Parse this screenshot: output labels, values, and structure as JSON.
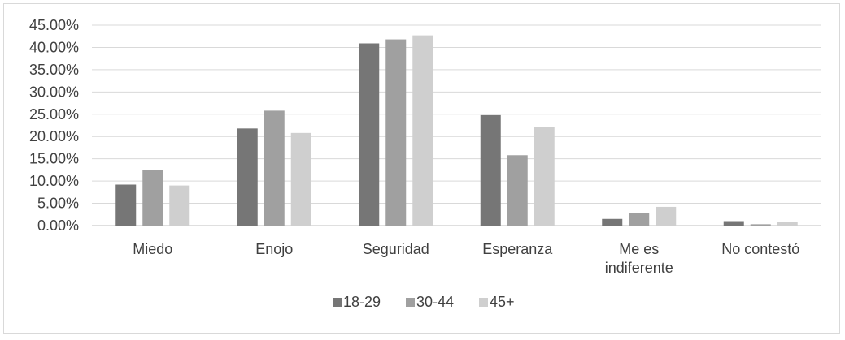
{
  "chart_data": {
    "type": "bar",
    "categories": [
      [
        "Miedo"
      ],
      [
        "Enojo"
      ],
      [
        "Seguridad"
      ],
      [
        "Esperanza"
      ],
      [
        "Me es",
        "indiferente"
      ],
      [
        "No contestó"
      ]
    ],
    "series": [
      {
        "name": "18-29",
        "color": "#767676",
        "values": [
          9.2,
          21.8,
          40.9,
          24.8,
          1.5,
          1.0
        ]
      },
      {
        "name": "30-44",
        "color": "#a0a0a0",
        "values": [
          12.5,
          25.8,
          41.8,
          15.8,
          2.8,
          0.3
        ]
      },
      {
        "name": "45+",
        "color": "#cfcfcf",
        "values": [
          9.0,
          20.8,
          42.7,
          22.1,
          4.2,
          0.8
        ]
      }
    ],
    "yticks": [
      "0.00%",
      "5.00%",
      "10.00%",
      "15.00%",
      "20.00%",
      "25.00%",
      "30.00%",
      "35.00%",
      "40.00%",
      "45.00%"
    ],
    "ylim": [
      0,
      45
    ],
    "grid": true,
    "legend_position": "bottom"
  }
}
